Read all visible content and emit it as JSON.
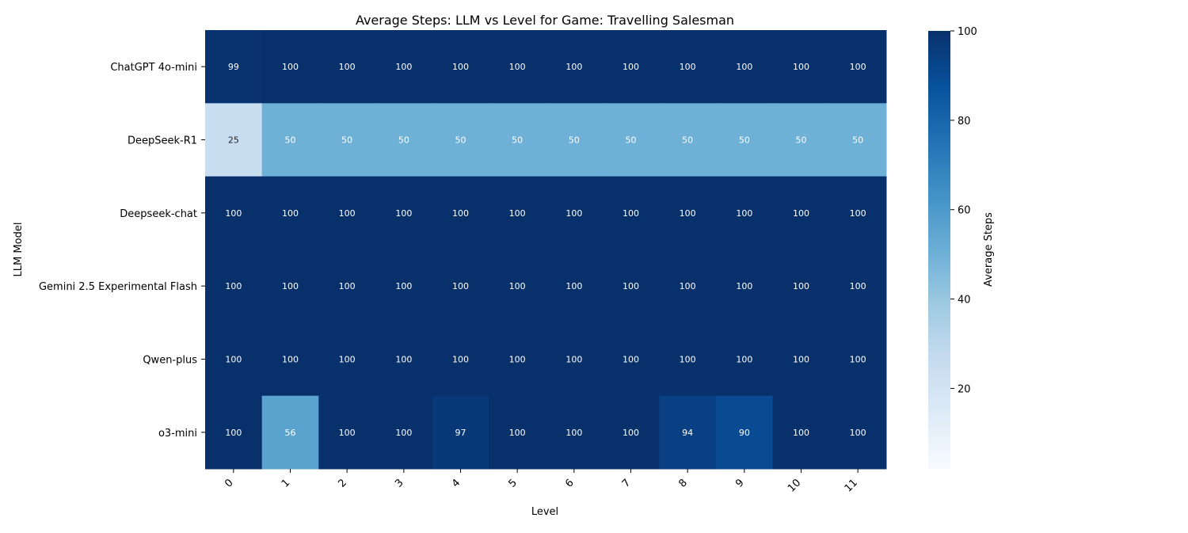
{
  "chart_data": {
    "type": "heatmap",
    "title": "Average Steps: LLM vs Level for Game: Travelling Salesman",
    "xlabel": "Level",
    "ylabel": "LLM Model",
    "x_categories": [
      "0",
      "1",
      "2",
      "3",
      "4",
      "5",
      "6",
      "7",
      "8",
      "9",
      "10",
      "11"
    ],
    "y_categories": [
      "ChatGPT 4o-mini",
      "DeepSeek-R1",
      "Deepseek-chat",
      "Gemini 2.5 Experimental Flash",
      "Qwen-plus",
      "o3-mini"
    ],
    "values": [
      [
        99,
        100,
        100,
        100,
        100,
        100,
        100,
        100,
        100,
        100,
        100,
        100
      ],
      [
        25,
        50,
        50,
        50,
        50,
        50,
        50,
        50,
        50,
        50,
        50,
        50
      ],
      [
        100,
        100,
        100,
        100,
        100,
        100,
        100,
        100,
        100,
        100,
        100,
        100
      ],
      [
        100,
        100,
        100,
        100,
        100,
        100,
        100,
        100,
        100,
        100,
        100,
        100
      ],
      [
        100,
        100,
        100,
        100,
        100,
        100,
        100,
        100,
        100,
        100,
        100,
        100
      ],
      [
        100,
        56,
        100,
        100,
        97,
        100,
        100,
        100,
        94,
        90,
        100,
        100
      ]
    ],
    "colorbar": {
      "label": "Average Steps",
      "vmin": 2,
      "vmax": 100,
      "ticks": [
        20,
        40,
        60,
        80,
        100
      ],
      "colormap": "Blues"
    },
    "grid": false,
    "legend": "colorbar-right"
  }
}
